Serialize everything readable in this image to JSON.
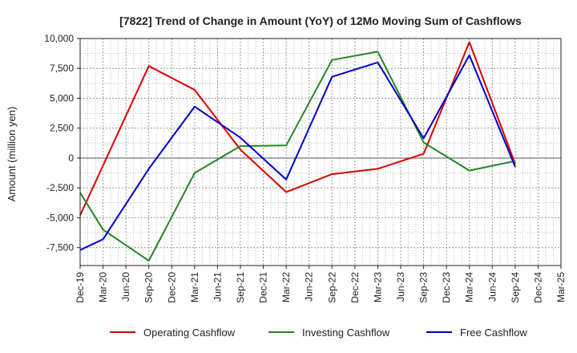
{
  "chart_data": {
    "type": "line",
    "title": "[7822]  Trend of Change in Amount (YoY) of 12Mo Moving Sum of Cashflows",
    "xlabel": "",
    "ylabel": "Amount (million yen)",
    "ylim": [
      -9000,
      10000
    ],
    "yticks": [
      10000,
      7500,
      5000,
      2500,
      0,
      -2500,
      -5000,
      -7500
    ],
    "ytick_labels": [
      "10,000",
      "7,500",
      "5,000",
      "2,500",
      "0",
      "-2,500",
      "-5,000",
      "-7,500"
    ],
    "categories": [
      "Dec-19",
      "Mar-20",
      "Jun-20",
      "Sep-20",
      "Dec-20",
      "Mar-21",
      "Jun-21",
      "Sep-21",
      "Dec-21",
      "Mar-22",
      "Jun-22",
      "Sep-22",
      "Dec-22",
      "Mar-23",
      "Jun-23",
      "Sep-23",
      "Dec-23",
      "Mar-24",
      "Jun-24",
      "Sep-24",
      "Dec-24",
      "Mar-25"
    ],
    "grid": true,
    "legend_position": "bottom",
    "series": [
      {
        "name": "Operating Cashflow",
        "color": "#dd0000",
        "values": [
          -4800,
          null,
          null,
          7700,
          null,
          5700,
          null,
          700,
          null,
          -2850,
          null,
          -1350,
          null,
          -900,
          null,
          350,
          null,
          9700,
          null,
          -500,
          null,
          null
        ]
      },
      {
        "name": "Investing Cashflow",
        "color": "#228822",
        "values": [
          -2900,
          -6000,
          null,
          -8600,
          null,
          -1250,
          null,
          1000,
          null,
          1050,
          null,
          8200,
          null,
          8900,
          null,
          1300,
          null,
          -1050,
          null,
          -250,
          null,
          null
        ]
      },
      {
        "name": "Free Cashflow",
        "color": "#0000cc",
        "values": [
          -7700,
          -6800,
          null,
          -900,
          null,
          4300,
          null,
          1700,
          null,
          -1800,
          null,
          6800,
          null,
          8000,
          null,
          1650,
          null,
          8600,
          null,
          -750,
          null,
          null
        ]
      }
    ]
  }
}
